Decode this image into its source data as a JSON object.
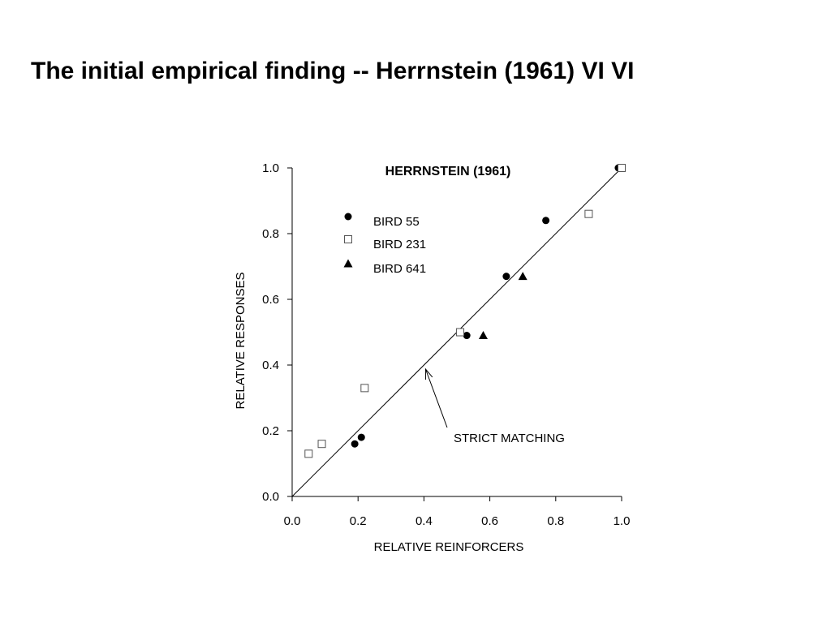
{
  "slide": {
    "title": "The initial empirical finding -- Herrnstein (1961) VI VI"
  },
  "chart_data": {
    "type": "scatter",
    "title": "HERRNSTEIN (1961)",
    "xlabel": "RELATIVE REINFORCERS",
    "ylabel": "RELATIVE RESPONSES",
    "xlim": [
      0,
      1
    ],
    "ylim": [
      0,
      1
    ],
    "xticks": [
      "0.0",
      "0.2",
      "0.4",
      "0.6",
      "0.8",
      "1.0"
    ],
    "yticks": [
      "0.0",
      "0.2",
      "0.4",
      "0.6",
      "0.8",
      "1.0"
    ],
    "grid": false,
    "legend_position": "top-left",
    "series": [
      {
        "name": "BIRD 55",
        "marker": "filled-circle",
        "color": "#000000",
        "points": [
          {
            "x": 0.19,
            "y": 0.16
          },
          {
            "x": 0.21,
            "y": 0.18
          },
          {
            "x": 0.53,
            "y": 0.49
          },
          {
            "x": 0.65,
            "y": 0.67
          },
          {
            "x": 0.77,
            "y": 0.84
          },
          {
            "x": 0.99,
            "y": 1.0
          }
        ]
      },
      {
        "name": "BIRD 231",
        "marker": "open-square",
        "color": "#000000",
        "points": [
          {
            "x": 0.05,
            "y": 0.13
          },
          {
            "x": 0.09,
            "y": 0.16
          },
          {
            "x": 0.22,
            "y": 0.33
          },
          {
            "x": 0.51,
            "y": 0.5
          },
          {
            "x": 0.9,
            "y": 0.86
          },
          {
            "x": 1.0,
            "y": 1.0
          }
        ]
      },
      {
        "name": "BIRD 641",
        "marker": "filled-triangle",
        "color": "#000000",
        "points": [
          {
            "x": 0.58,
            "y": 0.49
          },
          {
            "x": 0.7,
            "y": 0.67
          }
        ]
      }
    ],
    "reference_line": {
      "x": [
        0,
        1
      ],
      "y": [
        0,
        1
      ]
    },
    "annotations": [
      {
        "text": "STRICT MATCHING",
        "arrow_to": {
          "x": 0.4,
          "y": 0.4
        }
      }
    ]
  }
}
